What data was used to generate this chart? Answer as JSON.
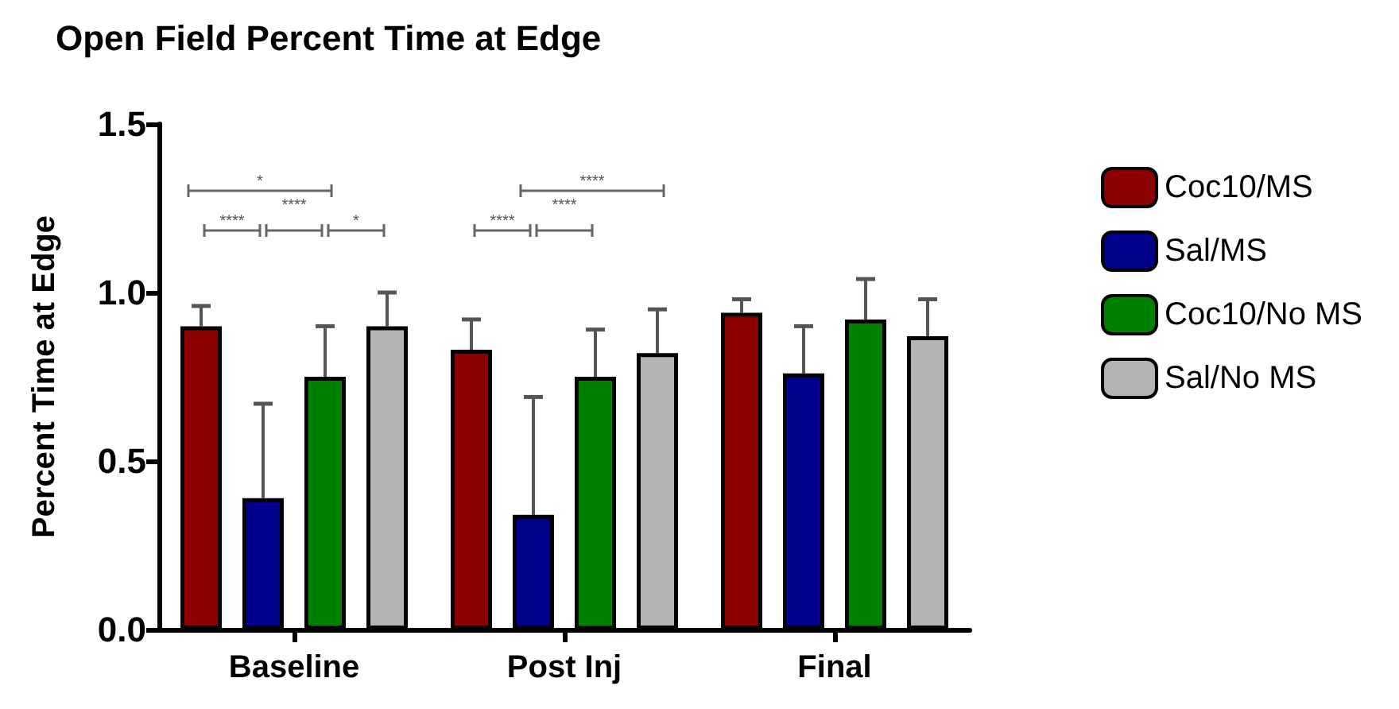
{
  "chart_data": {
    "type": "bar",
    "title": "Open Field Percent Time at Edge",
    "ylabel": "Percent Time at Edge",
    "categories": [
      "Baseline",
      "Post Inj",
      "Final"
    ],
    "series": [
      {
        "name": "Coc10/MS",
        "color": "#8b0000",
        "values": [
          0.9,
          0.83,
          0.94
        ],
        "errors": [
          [
            0.9,
            0.96
          ],
          [
            0.83,
            0.92
          ],
          [
            0.94,
            0.98
          ]
        ]
      },
      {
        "name": "Sal/MS",
        "color": "#00008b",
        "values": [
          0.39,
          0.34,
          0.76
        ],
        "errors": [
          [
            0.39,
            0.67
          ],
          [
            0.34,
            0.69
          ],
          [
            0.76,
            0.9
          ]
        ]
      },
      {
        "name": "Coc10/No MS",
        "color": "#008000",
        "values": [
          0.75,
          0.75,
          0.92
        ],
        "errors": [
          [
            0.75,
            0.9
          ],
          [
            0.75,
            0.89
          ],
          [
            0.92,
            1.04
          ]
        ]
      },
      {
        "name": "Sal/No MS",
        "color": "#b4b4b4",
        "values": [
          0.9,
          0.82,
          0.87
        ],
        "errors": [
          [
            0.9,
            1.0
          ],
          [
            0.82,
            0.95
          ],
          [
            0.87,
            0.98
          ]
        ]
      }
    ],
    "ylim": [
      0,
      1.5
    ],
    "yticks": [
      {
        "value": 0,
        "label": "0.0"
      },
      0.5,
      {
        "value": 1,
        "label": "1.0"
      },
      1.5
    ],
    "grid": false,
    "legend": "right",
    "annotations": [
      "*",
      "****",
      "****",
      "*",
      "****",
      "****",
      "****"
    ]
  }
}
